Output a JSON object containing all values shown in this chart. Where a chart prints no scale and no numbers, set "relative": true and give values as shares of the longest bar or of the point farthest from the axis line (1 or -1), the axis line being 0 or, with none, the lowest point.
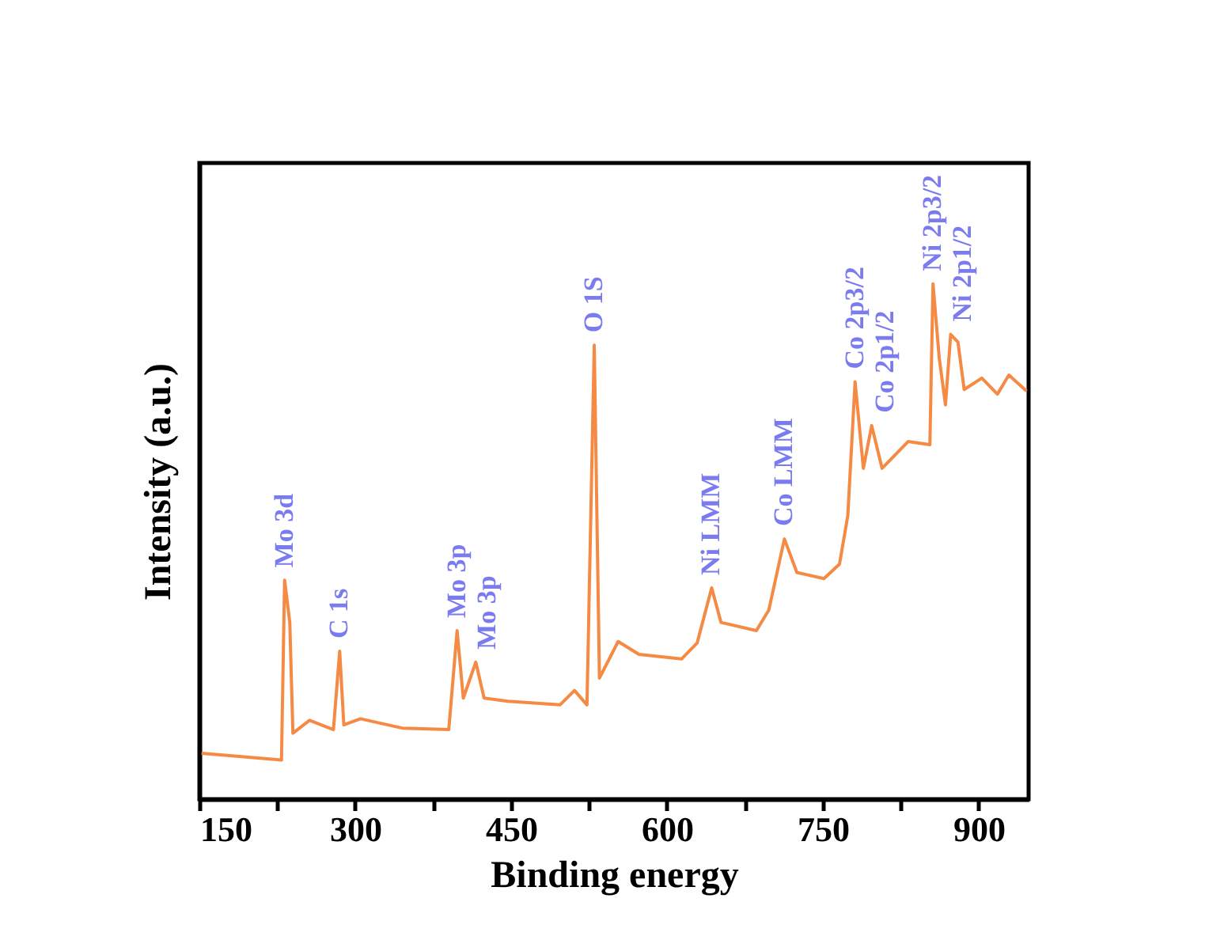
{
  "chart_data": {
    "type": "line",
    "relative": true,
    "xlabel": "Binding energy",
    "ylabel": "Intensity (a.u.)",
    "xlim": [
      150,
      948
    ],
    "xticks": [
      150,
      {
        "value": 225,
        "label": null
      },
      300,
      {
        "value": 375,
        "label": null
      },
      450,
      {
        "value": 525,
        "label": null
      },
      600,
      {
        "value": 675,
        "label": null
      },
      750,
      {
        "value": 825,
        "label": null
      },
      900
    ],
    "grid": false,
    "marker": "none",
    "line_style": "solid",
    "tick_labels": "x",
    "series": [
      {
        "color": "#f58a45",
        "x": [
          152,
          229,
          232,
          237,
          240,
          256,
          279,
          285,
          289,
          305,
          345,
          390,
          398,
          404,
          416,
          424,
          447,
          497,
          511,
          523,
          530,
          535,
          553,
          573,
          614,
          629,
          643,
          652,
          686,
          698,
          713,
          725,
          751,
          766,
          774,
          781,
          789,
          797,
          807,
          832,
          853,
          856,
          862,
          868,
          873,
          880,
          886,
          903,
          918,
          929,
          946
        ],
        "values": [
          0.089,
          0.076,
          0.425,
          0.343,
          0.128,
          0.153,
          0.135,
          0.287,
          0.144,
          0.156,
          0.138,
          0.135,
          0.327,
          0.196,
          0.266,
          0.196,
          0.19,
          0.183,
          0.211,
          0.183,
          0.881,
          0.235,
          0.306,
          0.281,
          0.272,
          0.303,
          0.41,
          0.343,
          0.327,
          0.367,
          0.505,
          0.44,
          0.428,
          0.456,
          0.55,
          0.81,
          0.642,
          0.725,
          0.642,
          0.694,
          0.688,
          1.0,
          0.856,
          0.765,
          0.902,
          0.887,
          0.795,
          0.817,
          0.786,
          0.823,
          0.792
        ]
      }
    ],
    "annotations": [
      {
        "text": "Mo 3d",
        "x": 232,
        "y": 0.425
      },
      {
        "text": "C 1s",
        "x": 285,
        "y": 0.287
      },
      {
        "text": "Mo 3p",
        "x": 398,
        "y": 0.327
      },
      {
        "text": "Mo 3p",
        "x": 416,
        "y": 0.266
      },
      {
        "text": "O 1S",
        "x": 530,
        "y": 0.881
      },
      {
        "text": "Ni LMM",
        "x": 643,
        "y": 0.41
      },
      {
        "text": "Co LMM",
        "x": 713,
        "y": 0.505
      },
      {
        "text": "Co 2p3/2",
        "x": 781,
        "y": 0.81
      },
      {
        "text": "Co 2p1/2",
        "x": 797,
        "y": 0.725
      },
      {
        "text": "Ni 2p3/2",
        "x": 856,
        "y": 1.0
      },
      {
        "text": "Ni 2p1/2",
        "x": 873,
        "y": 0.902
      }
    ]
  }
}
